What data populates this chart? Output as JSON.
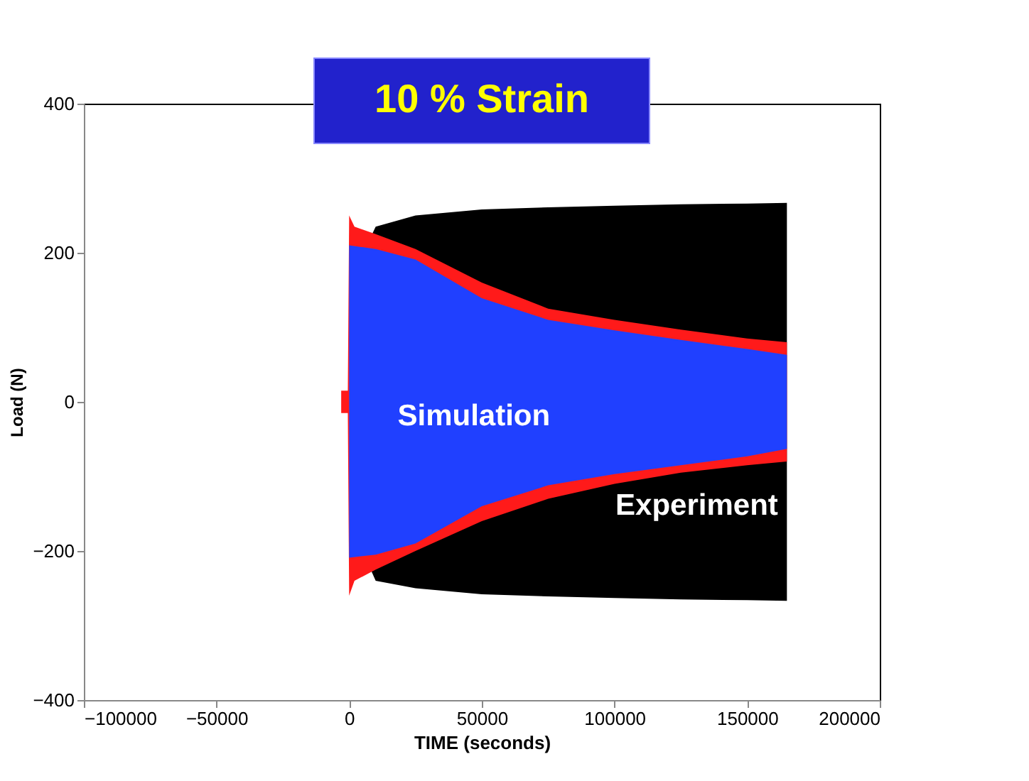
{
  "chart_data": {
    "type": "area",
    "title": "10 % Strain",
    "xlabel": "TIME (seconds)",
    "ylabel": "Load  (N)",
    "xlim": [
      -100000,
      200000
    ],
    "xticks": [
      -100000,
      -50000,
      0,
      50000,
      100000,
      150000,
      200000
    ],
    "ylim": [
      -400,
      400
    ],
    "yticks": [
      -400,
      -200,
      0,
      200,
      400
    ],
    "grid": false,
    "series": [
      {
        "color": "#000000",
        "x": [
          0,
          10000,
          25000,
          50000,
          75000,
          100000,
          125000,
          150000,
          165000
        ],
        "values": [
          160,
          235,
          250,
          258,
          261,
          263,
          265,
          266,
          267
        ]
      },
      {
        "color": "#000000",
        "x": [
          0,
          10000,
          25000,
          50000,
          75000,
          100000,
          125000,
          150000,
          165000
        ],
        "values": [
          -160,
          -240,
          -250,
          -258,
          -261,
          -263,
          -265,
          -266,
          -267
        ]
      },
      {
        "color": "#ff1a1a",
        "x": [
          -3000,
          -500,
          0,
          2000,
          10000,
          25000,
          50000,
          75000,
          100000,
          125000,
          150000,
          165000
        ],
        "values": [
          15,
          15,
          250,
          235,
          225,
          205,
          160,
          125,
          110,
          97,
          85,
          80
        ]
      },
      {
        "color": "#ff1a1a",
        "x": [
          -3000,
          -500,
          0,
          2000,
          10000,
          25000,
          50000,
          75000,
          100000,
          125000,
          150000,
          165000
        ],
        "values": [
          -15,
          -15,
          -260,
          -240,
          -225,
          -200,
          -160,
          -130,
          -110,
          -95,
          -85,
          -80
        ]
      },
      {
        "color": "#2040ff",
        "x": [
          0,
          10000,
          25000,
          50000,
          75000,
          100000,
          125000,
          150000,
          165000
        ],
        "values": [
          210,
          205,
          191,
          139,
          110,
          96,
          83,
          71,
          63
        ]
      },
      {
        "color": "#2040ff",
        "x": [
          0,
          10000,
          25000,
          50000,
          75000,
          100000,
          125000,
          150000,
          165000
        ],
        "values": [
          -209,
          -205,
          -190,
          -140,
          -112,
          -97,
          -85,
          -73,
          -63
        ]
      }
    ],
    "annotations": [
      "Simulation",
      "Experiment"
    ]
  }
}
